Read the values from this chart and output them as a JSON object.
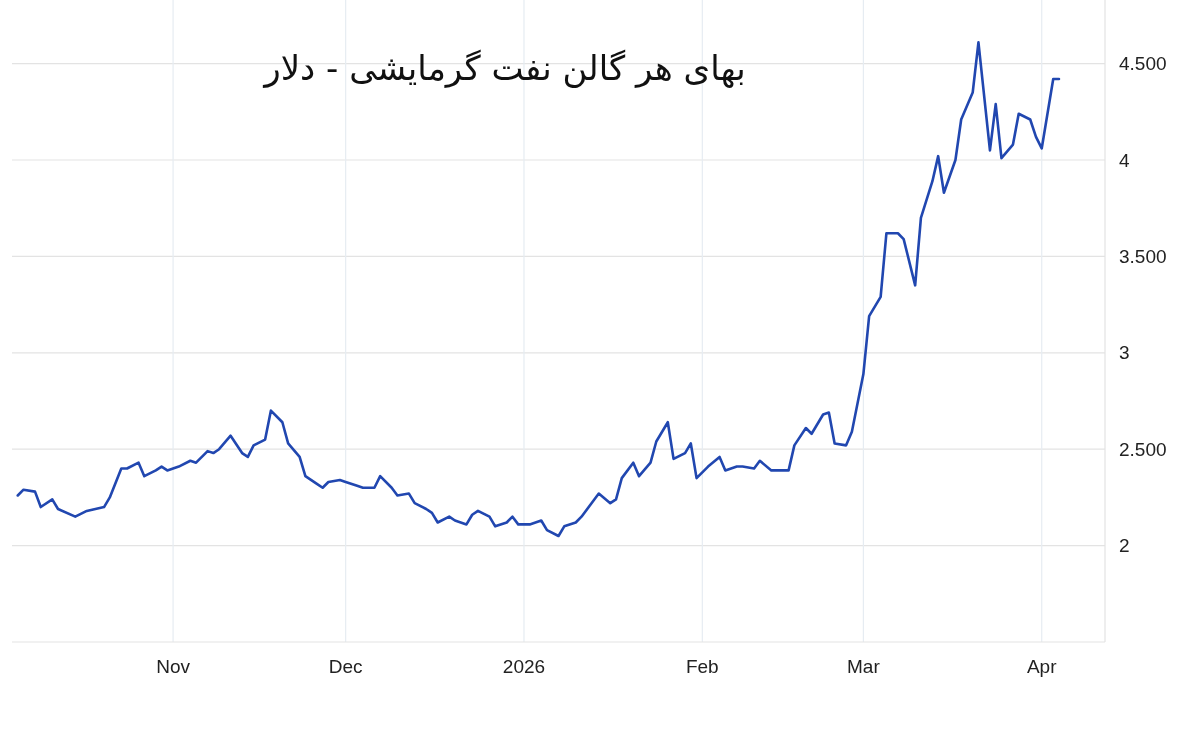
{
  "chart_data": {
    "type": "line",
    "title": "بهای هر گالن نفت گرمایشی - دلار",
    "x": [
      "2025-10-05",
      "2025-10-06",
      "2025-10-08",
      "2025-10-09",
      "2025-10-11",
      "2025-10-12",
      "2025-10-15",
      "2025-10-17",
      "2025-10-20",
      "2025-10-21",
      "2025-10-23",
      "2025-10-24",
      "2025-10-26",
      "2025-10-27",
      "2025-10-29",
      "2025-10-30",
      "2025-10-31",
      "2025-11-02",
      "2025-11-04",
      "2025-11-05",
      "2025-11-07",
      "2025-11-08",
      "2025-11-09",
      "2025-11-11",
      "2025-11-13",
      "2025-11-14",
      "2025-11-15",
      "2025-11-17",
      "2025-11-18",
      "2025-11-20",
      "2025-11-21",
      "2025-11-23",
      "2025-11-24",
      "2025-11-26",
      "2025-11-27",
      "2025-11-28",
      "2025-11-30",
      "2025-12-01",
      "2025-12-03",
      "2025-12-04",
      "2025-12-06",
      "2025-12-07",
      "2025-12-09",
      "2025-12-10",
      "2025-12-12",
      "2025-12-13",
      "2025-12-15",
      "2025-12-16",
      "2025-12-17",
      "2025-12-19",
      "2025-12-20",
      "2025-12-22",
      "2025-12-23",
      "2025-12-24",
      "2025-12-26",
      "2025-12-27",
      "2025-12-29",
      "2025-12-30",
      "2025-12-31",
      "2026-01-02",
      "2026-01-04",
      "2026-01-05",
      "2026-01-07",
      "2026-01-08",
      "2026-01-10",
      "2026-01-11",
      "2026-01-13",
      "2026-01-14",
      "2026-01-16",
      "2026-01-17",
      "2026-01-18",
      "2026-01-20",
      "2026-01-21",
      "2026-01-23",
      "2026-01-24",
      "2026-01-26",
      "2026-01-27",
      "2026-01-29",
      "2026-01-30",
      "2026-01-31",
      "2026-02-02",
      "2026-02-04",
      "2026-02-05",
      "2026-02-07",
      "2026-02-08",
      "2026-02-10",
      "2026-02-11",
      "2026-02-13",
      "2026-02-14",
      "2026-02-16",
      "2026-02-17",
      "2026-02-19",
      "2026-02-20",
      "2026-02-22",
      "2026-02-23",
      "2026-02-24",
      "2026-02-26",
      "2026-02-27",
      "2026-03-01",
      "2026-03-02",
      "2026-03-04",
      "2026-03-05",
      "2026-03-07",
      "2026-03-08",
      "2026-03-10",
      "2026-03-11",
      "2026-03-13",
      "2026-03-14",
      "2026-03-15",
      "2026-03-17",
      "2026-03-18",
      "2026-03-20",
      "2026-03-21",
      "2026-03-23",
      "2026-03-24",
      "2026-03-25",
      "2026-03-27",
      "2026-03-28",
      "2026-03-30",
      "2026-03-31",
      "2026-04-01",
      "2026-04-03",
      "2026-04-04"
    ],
    "series": [
      {
        "color": "#2147b0",
        "values": [
          2.26,
          2.29,
          2.28,
          2.2,
          2.24,
          2.19,
          2.15,
          2.18,
          2.2,
          2.25,
          2.4,
          2.4,
          2.43,
          2.36,
          2.39,
          2.41,
          2.39,
          2.41,
          2.44,
          2.43,
          2.49,
          2.48,
          2.5,
          2.57,
          2.48,
          2.46,
          2.52,
          2.55,
          2.7,
          2.64,
          2.53,
          2.46,
          2.36,
          2.32,
          2.3,
          2.33,
          2.34,
          2.33,
          2.31,
          2.3,
          2.3,
          2.36,
          2.3,
          2.26,
          2.27,
          2.22,
          2.19,
          2.17,
          2.12,
          2.15,
          2.13,
          2.11,
          2.16,
          2.18,
          2.15,
          2.1,
          2.12,
          2.15,
          2.11,
          2.11,
          2.13,
          2.08,
          2.05,
          2.1,
          2.12,
          2.15,
          2.23,
          2.27,
          2.22,
          2.24,
          2.35,
          2.43,
          2.36,
          2.43,
          2.54,
          2.64,
          2.45,
          2.48,
          2.53,
          2.35,
          2.41,
          2.46,
          2.39,
          2.41,
          2.41,
          2.4,
          2.44,
          2.39,
          2.39,
          2.39,
          2.52,
          2.61,
          2.58,
          2.68,
          2.69,
          2.53,
          2.52,
          2.59,
          2.89,
          3.19,
          3.29,
          3.62,
          3.62,
          3.59,
          3.35,
          3.7,
          3.89,
          4.02,
          3.83,
          4.0,
          4.21,
          4.35,
          4.61,
          4.05,
          4.29,
          4.01,
          4.08,
          4.24,
          4.21,
          4.12,
          4.06,
          4.42,
          4.42
        ]
      }
    ],
    "xlim": [
      "2025-10-04",
      "2026-04-12"
    ],
    "xticks": [
      {
        "value": "2025-11-01",
        "label": "Nov"
      },
      {
        "value": "2025-12-01",
        "label": "Dec"
      },
      {
        "value": "2026-01-01",
        "label": "2026"
      },
      {
        "value": "2026-02-01",
        "label": "Feb"
      },
      {
        "value": "2026-03-01",
        "label": "Mar"
      },
      {
        "value": "2026-04-01",
        "label": "Apr"
      }
    ],
    "ylim": [
      1.5,
      4.83
    ],
    "yticks": [
      2,
      {
        "value": 2.5,
        "label": "2.500"
      },
      3,
      {
        "value": 3.5,
        "label": "3.500"
      },
      4,
      {
        "value": 4.5,
        "label": "4.500"
      }
    ],
    "grid": true,
    "marker": "none",
    "line_style": "solid"
  }
}
